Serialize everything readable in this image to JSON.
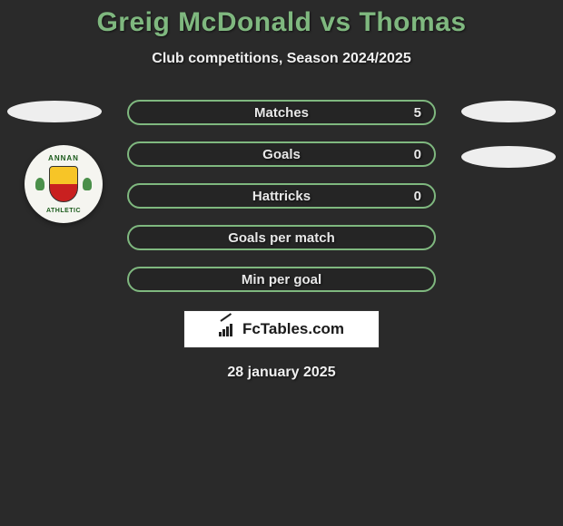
{
  "title": "Greig McDonald vs Thomas",
  "subtitle": "Club competitions, Season 2024/2025",
  "stats": [
    {
      "label": "Matches",
      "right_value": "5"
    },
    {
      "label": "Goals",
      "right_value": "0"
    },
    {
      "label": "Hattricks",
      "right_value": "0"
    },
    {
      "label": "Goals per match",
      "right_value": ""
    },
    {
      "label": "Min per goal",
      "right_value": ""
    }
  ],
  "badge": {
    "top_text": "ANNAN",
    "bottom_text": "ATHLETIC",
    "shield_top_color": "#f7c527",
    "shield_bottom_color": "#c92020",
    "ring_color": "#f5f5f0",
    "text_color": "#1a5a1a"
  },
  "logo_text": "FcTables.com",
  "date": "28 january 2025",
  "colors": {
    "background": "#2a2a2a",
    "accent": "#7fb87f",
    "text_light": "#f0f0f0",
    "oval": "#eeeeee",
    "logo_bg": "#ffffff"
  }
}
